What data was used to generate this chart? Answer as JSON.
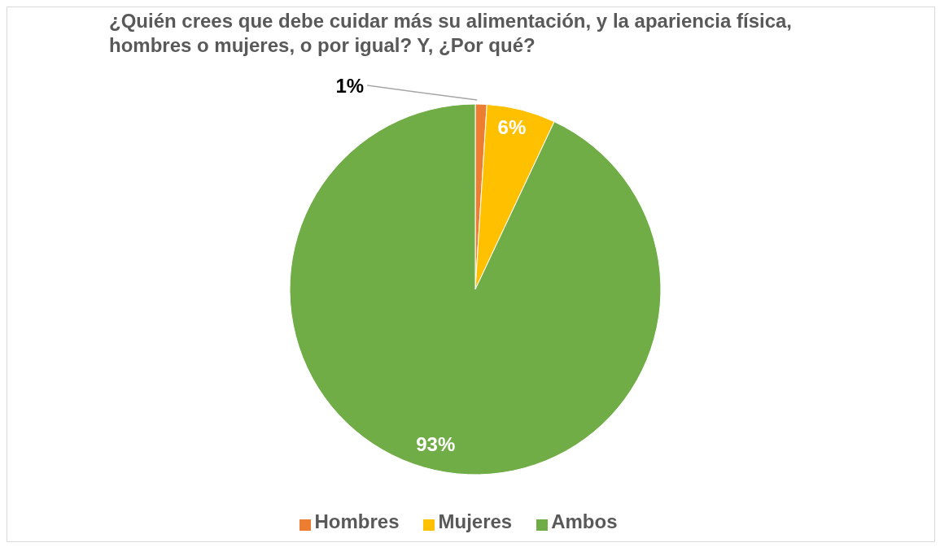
{
  "chart_data": {
    "type": "pie",
    "title": "¿Quién crees que debe cuidar más su alimentación, y la apariencia física, hombres o mujeres, o por igual? Y, ¿Por qué?",
    "categories": [
      "Hombres",
      "Mujeres",
      "Ambos"
    ],
    "values": [
      1,
      6,
      93
    ],
    "colors": [
      "#ed7d31",
      "#ffc000",
      "#70ad47"
    ],
    "value_labels": [
      "1%",
      "6%",
      "93%"
    ],
    "legend": "bottom"
  }
}
